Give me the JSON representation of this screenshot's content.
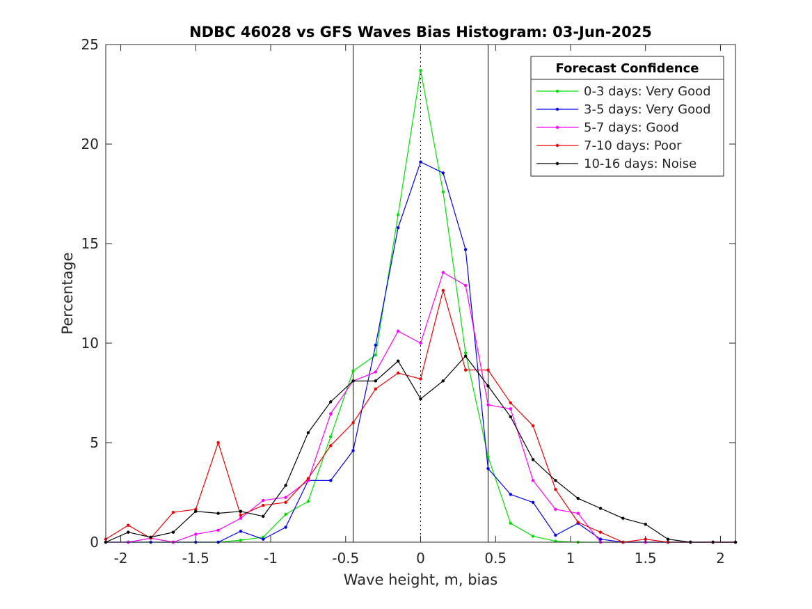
{
  "chart_data": {
    "type": "line",
    "title": "NDBC 46028 vs GFS Waves Bias Histogram: 03-Jun-2025",
    "xlabel": "Wave height, m, bias",
    "ylabel": "Percentage",
    "xlim": [
      -2.1,
      2.1
    ],
    "ylim": [
      0,
      25
    ],
    "xticks": [
      -2,
      -1.5,
      -1,
      -0.5,
      0,
      0.5,
      1,
      1.5,
      2
    ],
    "xtick_labels": [
      "-2",
      "-1.5",
      "-1",
      "-0.5",
      "0",
      "0.5",
      "1",
      "1.5",
      "2"
    ],
    "yticks": [
      0,
      5,
      10,
      15,
      20,
      25
    ],
    "ytick_labels": [
      "0",
      "5",
      "10",
      "15",
      "20",
      "25"
    ],
    "grid": false,
    "vertical_lines": [
      {
        "x": -0.45,
        "style": "solid"
      },
      {
        "x": 0,
        "style": "dotted"
      },
      {
        "x": 0.45,
        "style": "solid"
      }
    ],
    "legend": {
      "title": "Forecast Confidence",
      "position": "top-right"
    },
    "x": [
      -2.1,
      -1.95,
      -1.8,
      -1.65,
      -1.5,
      -1.35,
      -1.2,
      -1.05,
      -0.9,
      -0.75,
      -0.6,
      -0.45,
      -0.3,
      -0.15,
      0,
      0.15,
      0.3,
      0.45,
      0.6,
      0.75,
      0.9,
      1.05,
      1.2,
      1.35,
      1.5,
      1.65,
      1.8,
      1.95,
      2.1
    ],
    "series": [
      {
        "name": "0-3 days: Very Good",
        "color": "#00e000",
        "values": [
          0,
          0,
          0,
          0,
          0,
          0,
          0.1,
          0.25,
          1.4,
          2.05,
          5.3,
          8.6,
          9.4,
          16.45,
          23.7,
          17.6,
          9.5,
          4.3,
          0.95,
          0.3,
          0.05,
          0,
          0,
          0,
          0,
          0,
          0,
          0,
          0
        ]
      },
      {
        "name": "3-5 days: Very Good",
        "color": "#0000ee",
        "values": [
          0,
          0,
          0,
          0,
          0,
          0,
          0.55,
          0.15,
          0.75,
          3.1,
          3.1,
          4.6,
          9.9,
          15.8,
          19.1,
          18.55,
          14.7,
          3.7,
          2.4,
          2.0,
          0.35,
          0.95,
          0.15,
          0,
          0,
          0,
          0,
          0,
          0
        ]
      },
      {
        "name": "5-7 days: Good",
        "color": "#ff00ff",
        "values": [
          0,
          0,
          0.2,
          0,
          0.4,
          0.6,
          1.2,
          2.1,
          2.25,
          3.1,
          6.45,
          8.1,
          8.55,
          10.6,
          10.0,
          13.55,
          12.9,
          6.9,
          6.7,
          3.1,
          1.65,
          1.45,
          0,
          0,
          0,
          0,
          0,
          0,
          0
        ]
      },
      {
        "name": "7-10 days: Poor",
        "color": "#ee0000",
        "values": [
          0.15,
          0.85,
          0.2,
          1.5,
          1.65,
          5.0,
          1.35,
          1.85,
          2.0,
          3.2,
          4.85,
          6.0,
          7.7,
          8.5,
          8.2,
          12.65,
          8.65,
          8.65,
          7.0,
          5.85,
          2.65,
          1.0,
          0.5,
          0,
          0.15,
          0,
          0,
          0,
          0
        ]
      },
      {
        "name": "10-16 days: Noise",
        "color": "#000000",
        "values": [
          0,
          0.5,
          0.25,
          0.5,
          1.55,
          1.45,
          1.55,
          1.3,
          2.85,
          5.5,
          7.05,
          8.1,
          8.1,
          9.1,
          7.2,
          8.1,
          9.35,
          7.85,
          6.3,
          4.15,
          3.1,
          2.2,
          1.7,
          1.2,
          0.9,
          0.15,
          0,
          0,
          0
        ]
      }
    ]
  }
}
